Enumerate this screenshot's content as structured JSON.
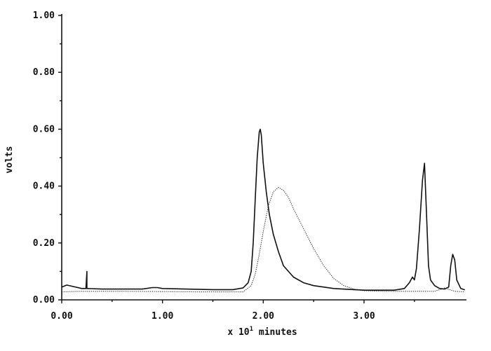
{
  "chart_data": {
    "type": "line",
    "xlabel_prefix": "x 10",
    "xlabel_exp": "1",
    "xlabel_suffix": " minutes",
    "ylabel": "volts",
    "xlim": [
      0,
      4.0
    ],
    "ylim": [
      0,
      1.0
    ],
    "x_ticks": [
      0,
      1,
      2,
      3
    ],
    "x_tick_labels": [
      "0.00",
      "1.00",
      "2.00",
      "3.00"
    ],
    "y_ticks": [
      0,
      0.2,
      0.4,
      0.6,
      0.8,
      1.0
    ],
    "y_tick_labels": [
      "0.00",
      "0.20",
      "0.40",
      "0.60",
      "0.80",
      "1.00"
    ],
    "grid": false,
    "series": [
      {
        "style": "solid",
        "x": [
          0.0,
          0.05,
          0.1,
          0.2,
          0.24,
          0.25,
          0.25,
          0.26,
          0.4,
          0.8,
          0.9,
          0.95,
          1.0,
          1.5,
          1.7,
          1.8,
          1.85,
          1.88,
          1.9,
          1.92,
          1.94,
          1.96,
          1.97,
          1.98,
          2.0,
          2.03,
          2.06,
          2.1,
          2.15,
          2.2,
          2.3,
          2.4,
          2.5,
          2.7,
          3.0,
          3.3,
          3.4,
          3.45,
          3.48,
          3.5,
          3.52,
          3.55,
          3.58,
          3.6,
          3.62,
          3.64,
          3.66,
          3.7,
          3.75,
          3.8,
          3.84,
          3.86,
          3.88,
          3.9,
          3.92,
          3.96,
          4.0
        ],
        "y": [
          0.045,
          0.052,
          0.048,
          0.04,
          0.04,
          0.1,
          0.04,
          0.04,
          0.038,
          0.038,
          0.043,
          0.043,
          0.04,
          0.036,
          0.036,
          0.042,
          0.06,
          0.1,
          0.2,
          0.35,
          0.5,
          0.59,
          0.6,
          0.58,
          0.48,
          0.38,
          0.3,
          0.23,
          0.17,
          0.12,
          0.08,
          0.06,
          0.05,
          0.04,
          0.034,
          0.034,
          0.04,
          0.06,
          0.08,
          0.07,
          0.11,
          0.25,
          0.42,
          0.48,
          0.3,
          0.12,
          0.07,
          0.05,
          0.04,
          0.038,
          0.045,
          0.12,
          0.16,
          0.14,
          0.07,
          0.04,
          0.035
        ]
      },
      {
        "style": "dotted",
        "x": [
          0.0,
          0.2,
          0.6,
          1.0,
          1.4,
          1.8,
          1.88,
          1.92,
          1.96,
          2.0,
          2.05,
          2.1,
          2.15,
          2.2,
          2.25,
          2.3,
          2.35,
          2.4,
          2.5,
          2.6,
          2.7,
          2.8,
          2.9,
          3.0,
          3.2,
          3.5,
          3.7,
          3.75,
          3.8,
          3.85,
          3.9,
          4.0
        ],
        "y": [
          0.028,
          0.03,
          0.03,
          0.029,
          0.028,
          0.028,
          0.05,
          0.09,
          0.16,
          0.24,
          0.33,
          0.38,
          0.395,
          0.385,
          0.36,
          0.32,
          0.285,
          0.25,
          0.18,
          0.12,
          0.075,
          0.05,
          0.038,
          0.032,
          0.03,
          0.03,
          0.03,
          0.036,
          0.042,
          0.036,
          0.03,
          0.028
        ]
      }
    ]
  }
}
